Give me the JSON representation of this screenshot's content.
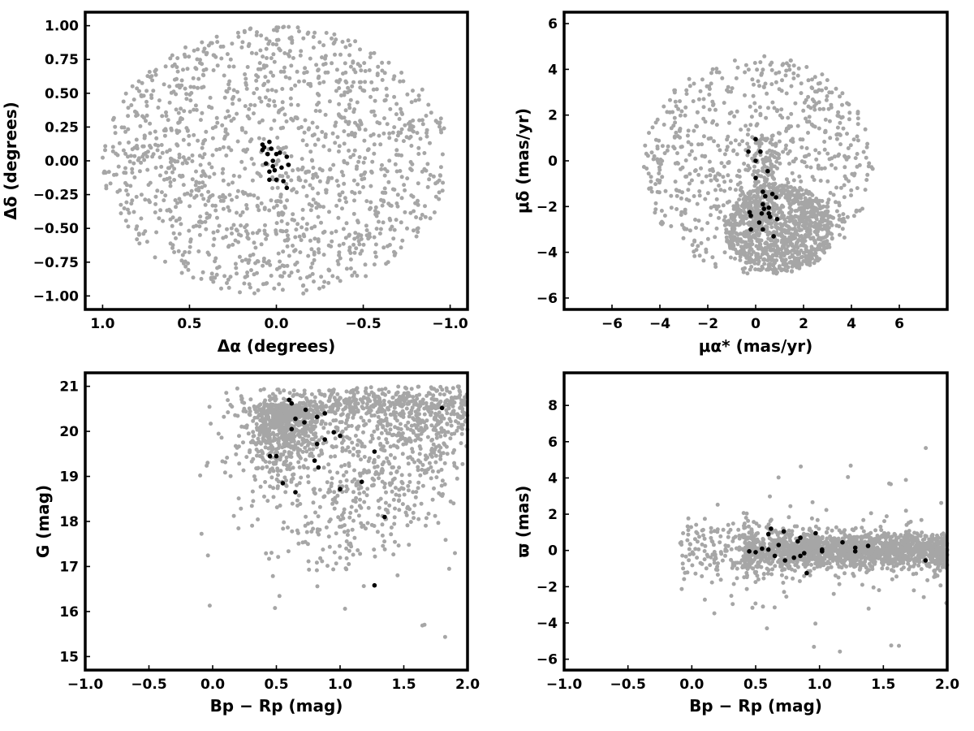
{
  "chart_data": [
    {
      "type": "scatter",
      "title": "",
      "xlabel": "Δα (degrees)",
      "ylabel": "Δδ (degrees)",
      "xlim": [
        1.1,
        -1.1
      ],
      "ylim": [
        -1.1,
        1.1
      ],
      "x_reversed": true,
      "xticks": [
        1.0,
        0.5,
        0.0,
        -0.5,
        -1.0
      ],
      "xtick_labels": [
        "1.0",
        "0.5",
        "0.0",
        "−0.5",
        "−1.0"
      ],
      "yticks": [
        -1.0,
        -0.75,
        -0.5,
        -0.25,
        0.0,
        0.25,
        0.5,
        0.75,
        1.0
      ],
      "ytick_labels": [
        "−1.00",
        "−0.75",
        "−0.50",
        "−0.25",
        "0.00",
        "0.25",
        "0.50",
        "0.75",
        "1.00"
      ],
      "grid": false,
      "field_distribution": {
        "shape": "disk",
        "center": [
          0.0,
          0.0
        ],
        "radius_x": 1.0,
        "radius_y": 1.0,
        "approx_count": 1400,
        "color": "#a6a6a6"
      },
      "series": [
        {
          "color": "#000000",
          "points": [
            [
              0.08,
              0.12
            ],
            [
              0.04,
              0.14
            ],
            [
              0.03,
              0.09
            ],
            [
              0.0,
              0.05
            ],
            [
              0.05,
              0.05
            ],
            [
              0.07,
              0.1
            ],
            [
              -0.02,
              0.06
            ],
            [
              0.02,
              0.0
            ],
            [
              -0.06,
              0.03
            ],
            [
              0.06,
              -0.02
            ],
            [
              -0.03,
              -0.05
            ],
            [
              0.04,
              -0.08
            ],
            [
              0.02,
              -0.04
            ],
            [
              -0.07,
              -0.03
            ],
            [
              0.01,
              -0.07
            ],
            [
              0.0,
              -0.14
            ],
            [
              0.04,
              -0.14
            ],
            [
              -0.04,
              -0.15
            ],
            [
              -0.06,
              -0.2
            ],
            [
              0.08,
              0.08
            ]
          ]
        }
      ]
    },
    {
      "type": "scatter",
      "title": "",
      "xlabel": "μα* (mas/yr)",
      "ylabel": "μδ (mas/yr)",
      "xlim": [
        -8,
        8
      ],
      "ylim": [
        -6.5,
        6.5
      ],
      "xticks": [
        -6,
        -4,
        -2,
        0,
        2,
        4,
        6
      ],
      "xtick_labels": [
        "−6",
        "−4",
        "−2",
        "0",
        "2",
        "4",
        "6"
      ],
      "yticks": [
        -6,
        -4,
        -2,
        0,
        2,
        4,
        6
      ],
      "ytick_labels": [
        "−6",
        "−4",
        "−2",
        "0",
        "2",
        "4",
        "6"
      ],
      "grid": false,
      "field_distribution": {
        "shape": "disk",
        "center": [
          0.1,
          -0.2
        ],
        "radius_x": 4.8,
        "radius_y": 4.8,
        "clip_y": [
          -5.0,
          4.8
        ],
        "dense_region": {
          "center": [
            1.0,
            -3.0
          ],
          "radius": 2.3
        },
        "dense_column": {
          "x": 0.3,
          "y_from": -3.0,
          "y_to": 1.0
        },
        "approx_count": 1800,
        "color": "#a6a6a6"
      },
      "series": [
        {
          "color": "#000000",
          "points": [
            [
              0.0,
              0.95
            ],
            [
              -0.3,
              0.4
            ],
            [
              0.2,
              0.4
            ],
            [
              0.0,
              0.0
            ],
            [
              0.5,
              -0.45
            ],
            [
              0.0,
              -0.75
            ],
            [
              0.3,
              -1.35
            ],
            [
              0.7,
              -1.45
            ],
            [
              0.85,
              -1.6
            ],
            [
              0.4,
              -1.55
            ],
            [
              0.3,
              -1.9
            ],
            [
              0.35,
              -2.1
            ],
            [
              0.55,
              -2.05
            ],
            [
              0.25,
              -2.3
            ],
            [
              0.55,
              -2.3
            ],
            [
              -0.25,
              -2.25
            ],
            [
              -0.2,
              -2.4
            ],
            [
              0.6,
              -2.45
            ],
            [
              0.9,
              -2.55
            ],
            [
              0.15,
              -2.7
            ],
            [
              -0.2,
              -3.0
            ],
            [
              0.3,
              -3.0
            ],
            [
              0.75,
              -3.3
            ]
          ]
        }
      ]
    },
    {
      "type": "scatter",
      "title": "",
      "xlabel": "Bp − Rp (mag)",
      "ylabel": "G (mag)",
      "xlim": [
        -1.0,
        2.0
      ],
      "ylim": [
        14.7,
        21.3
      ],
      "xticks": [
        -1.0,
        -0.5,
        0.0,
        0.5,
        1.0,
        1.5,
        2.0
      ],
      "xtick_labels": [
        "−1.0",
        "−0.5",
        "0.0",
        "0.5",
        "1.0",
        "1.5",
        "2.0"
      ],
      "yticks": [
        15,
        16,
        17,
        18,
        19,
        20,
        21
      ],
      "ytick_labels": [
        "15",
        "16",
        "17",
        "18",
        "19",
        "20",
        "21"
      ],
      "grid": false,
      "field_distribution": {
        "shape": "cmd",
        "approx_count": 1900,
        "color": "#a6a6a6"
      },
      "series": [
        {
          "color": "#000000",
          "points": [
            [
              0.6,
              20.7
            ],
            [
              0.62,
              20.62
            ],
            [
              0.73,
              20.48
            ],
            [
              0.88,
              20.4
            ],
            [
              0.82,
              20.32
            ],
            [
              0.65,
              20.28
            ],
            [
              0.72,
              20.2
            ],
            [
              0.62,
              20.05
            ],
            [
              0.95,
              19.98
            ],
            [
              1.0,
              19.9
            ],
            [
              0.88,
              19.82
            ],
            [
              0.82,
              19.72
            ],
            [
              1.27,
              19.55
            ],
            [
              0.45,
              19.45
            ],
            [
              0.5,
              19.45
            ],
            [
              0.8,
              19.35
            ],
            [
              0.83,
              19.2
            ],
            [
              1.8,
              20.52
            ],
            [
              0.55,
              18.85
            ],
            [
              1.17,
              18.88
            ],
            [
              0.65,
              18.65
            ],
            [
              1.0,
              18.72
            ],
            [
              1.35,
              18.1
            ],
            [
              1.27,
              16.58
            ]
          ]
        }
      ]
    },
    {
      "type": "scatter",
      "title": "",
      "xlabel": "Bp − Rp (mag)",
      "ylabel": "ϖ (mas)",
      "xlim": [
        -1.0,
        2.0
      ],
      "ylim": [
        -6.6,
        9.8
      ],
      "xticks": [
        -1.0,
        -0.5,
        0.0,
        0.5,
        1.0,
        1.5,
        2.0
      ],
      "xtick_labels": [
        "−1.0",
        "−0.5",
        "0.0",
        "0.5",
        "1.0",
        "1.5",
        "2.0"
      ],
      "yticks": [
        -6,
        -4,
        -2,
        0,
        2,
        4,
        6,
        8
      ],
      "ytick_labels": [
        "−6",
        "−4",
        "−2",
        "0",
        "2",
        "4",
        "6",
        "8"
      ],
      "grid": false,
      "field_distribution": {
        "shape": "parallax-band",
        "center_y": 0.0,
        "approx_count": 1900,
        "color": "#a6a6a6"
      },
      "series": [
        {
          "color": "#000000",
          "points": [
            [
              0.45,
              -0.05
            ],
            [
              0.5,
              -0.1
            ],
            [
              0.55,
              0.1
            ],
            [
              0.6,
              0.9
            ],
            [
              0.62,
              1.2
            ],
            [
              0.6,
              0.05
            ],
            [
              0.68,
              0.3
            ],
            [
              0.65,
              -0.3
            ],
            [
              0.72,
              1.05
            ],
            [
              0.73,
              -0.55
            ],
            [
              0.8,
              -0.4
            ],
            [
              0.83,
              0.5
            ],
            [
              0.85,
              0.7
            ],
            [
              0.85,
              -0.3
            ],
            [
              0.88,
              -0.15
            ],
            [
              0.9,
              -1.25
            ],
            [
              0.97,
              0.95
            ],
            [
              1.02,
              0.05
            ],
            [
              1.02,
              -0.05
            ],
            [
              1.18,
              0.45
            ],
            [
              1.28,
              0.15
            ],
            [
              1.28,
              -0.05
            ],
            [
              1.38,
              0.25
            ],
            [
              1.83,
              -0.55
            ]
          ]
        }
      ]
    }
  ]
}
